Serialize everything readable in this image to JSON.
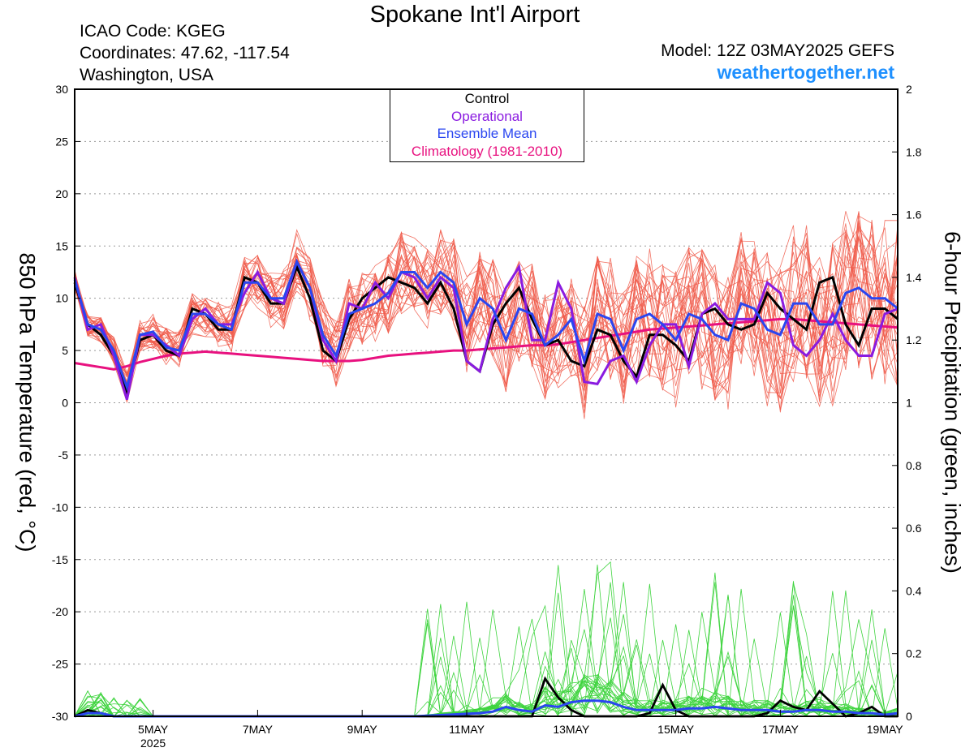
{
  "header": {
    "title": "Spokane Int'l Airport",
    "icao": "ICAO Code: KGEG",
    "coords": "Coordinates: 47.62, -117.54",
    "location": "Washington, USA",
    "model": "Model: 12Z 03MAY2025 GEFS",
    "site": "weathertogether.net"
  },
  "legend": {
    "control": "Control",
    "operational": "Operational",
    "mean": "Ensemble Mean",
    "climo": "Climatology (1981-2010)"
  },
  "colors": {
    "control": "#000000",
    "operational": "#8a1be0",
    "mean": "#2a46f0",
    "climo": "#e8117f",
    "members": "#f05a4a",
    "precip_members": "#3fd43f",
    "site": "#1e90ff"
  },
  "chart_data": {
    "type": "line",
    "ylabel_left": "850 hPa Temperature (red, °C)",
    "ylabel_right": "6-hour Precipitation (green, inches)",
    "ylim_left": [
      -30,
      30
    ],
    "ylim_right": [
      0,
      2
    ],
    "yticks_left": [
      "30",
      "25",
      "20",
      "15",
      "10",
      "5",
      "0",
      "-5",
      "-10",
      "-15",
      "-20",
      "-25",
      "-30"
    ],
    "yticks_right": [
      "2",
      "1.8",
      "1.6",
      "1.4",
      "1.2",
      "1",
      "0.8",
      "0.6",
      "0.4",
      "0.2",
      "0"
    ],
    "grid": true,
    "x_start": "2025-05-03T12Z",
    "x_step_hours": 6,
    "xticks": [
      {
        "label": "5MAY",
        "year": "2025",
        "index": 6
      },
      {
        "label": "7MAY",
        "index": 14
      },
      {
        "label": "9MAY",
        "index": 22
      },
      {
        "label": "11MAY",
        "index": 30
      },
      {
        "label": "13MAY",
        "index": 38
      },
      {
        "label": "15MAY",
        "index": 46
      },
      {
        "label": "17MAY",
        "index": 54
      },
      {
        "label": "19MAY",
        "index": 62
      }
    ],
    "temperature": {
      "control": [
        11.5,
        7.5,
        6.5,
        4.5,
        1.0,
        6.0,
        6.5,
        5.0,
        4.5,
        9.0,
        8.5,
        7.0,
        7.0,
        12.0,
        11.5,
        9.5,
        9.5,
        13.0,
        10.0,
        5.0,
        4.0,
        8.0,
        10.0,
        11.0,
        12.0,
        11.5,
        11.0,
        9.5,
        11.5,
        9.0,
        4.0,
        3.0,
        7.5,
        9.5,
        11.0,
        8.0,
        5.5,
        6.0,
        4.0,
        3.5,
        7.0,
        6.5,
        4.0,
        2.5,
        6.5,
        6.5,
        5.5,
        4.0,
        8.5,
        9.0,
        7.5,
        7.0,
        7.5,
        10.5,
        9.0,
        8.0,
        7.0,
        11.5,
        12.0,
        7.5,
        5.5,
        9.0,
        9.0,
        8.0
      ],
      "operational": [
        12.0,
        7.0,
        7.5,
        4.5,
        0.3,
        6.5,
        6.5,
        5.5,
        4.5,
        8.0,
        9.0,
        7.5,
        7.5,
        10.5,
        12.5,
        10.0,
        9.5,
        13.5,
        11.0,
        6.0,
        4.0,
        9.5,
        9.0,
        11.5,
        10.0,
        12.5,
        12.0,
        10.0,
        12.0,
        11.0,
        4.0,
        3.0,
        8.0,
        11.0,
        13.0,
        6.0,
        6.0,
        11.5,
        9.0,
        2.0,
        1.8,
        4.0,
        4.5,
        2.0,
        5.5,
        7.5,
        7.5,
        3.5,
        8.5,
        9.5,
        8.0,
        8.0,
        8.0,
        11.5,
        10.5,
        5.5,
        4.5,
        6.0,
        8.5,
        6.0,
        4.5,
        4.5,
        8.5,
        9.0
      ],
      "mean": [
        11.8,
        7.5,
        7.0,
        5.0,
        1.5,
        6.5,
        6.8,
        5.3,
        5.0,
        8.5,
        8.5,
        7.5,
        7.0,
        11.5,
        11.5,
        10.0,
        10.0,
        13.5,
        11.0,
        6.5,
        4.5,
        8.5,
        9.0,
        9.5,
        10.5,
        12.5,
        12.5,
        11.0,
        12.5,
        11.5,
        7.5,
        10.0,
        9.0,
        6.0,
        9.0,
        8.5,
        5.5,
        6.5,
        8.0,
        4.0,
        8.5,
        8.0,
        5.0,
        8.0,
        8.5,
        7.5,
        6.0,
        8.5,
        8.0,
        6.5,
        6.0,
        9.5,
        9.0,
        7.0,
        6.5,
        9.5,
        9.5,
        7.5,
        7.5,
        10.5,
        11.0,
        10.0,
        10.0,
        9.0
      ],
      "climatology": [
        3.8,
        3.6,
        3.4,
        3.2,
        3.5,
        3.9,
        4.2,
        4.5,
        4.7,
        4.8,
        4.9,
        4.8,
        4.7,
        4.6,
        4.5,
        4.4,
        4.3,
        4.2,
        4.1,
        4.0,
        4.0,
        4.0,
        4.1,
        4.3,
        4.5,
        4.6,
        4.7,
        4.8,
        4.9,
        5.0,
        5.0,
        5.1,
        5.2,
        5.3,
        5.4,
        5.5,
        5.5,
        5.6,
        5.8,
        6.0,
        6.2,
        6.4,
        6.6,
        6.8,
        7.0,
        7.1,
        7.2,
        7.3,
        7.4,
        7.5,
        7.6,
        7.7,
        7.8,
        7.9,
        8.0,
        8.0,
        7.9,
        7.8,
        7.7,
        7.6,
        7.5,
        7.4,
        7.3,
        7.2
      ]
    },
    "precipitation": {
      "control": [
        0.0,
        0.02,
        0.01,
        0.0,
        0.0,
        0.0,
        0.0,
        0.0,
        0.0,
        0.0,
        0.0,
        0.0,
        0.0,
        0.0,
        0.0,
        0.0,
        0.0,
        0.0,
        0.0,
        0.0,
        0.0,
        0.0,
        0.0,
        0.0,
        0.0,
        0.0,
        0.0,
        0.0,
        0.0,
        0.0,
        0.0,
        0.0,
        0.0,
        0.0,
        0.0,
        0.0,
        0.12,
        0.06,
        0.02,
        0.0,
        0.0,
        0.0,
        0.0,
        0.0,
        0.01,
        0.1,
        0.02,
        0.0,
        0.0,
        0.0,
        0.0,
        0.0,
        0.0,
        0.01,
        0.05,
        0.03,
        0.02,
        0.08,
        0.04,
        0.0,
        0.01,
        0.03,
        0.0,
        0.0
      ],
      "mean": [
        0.0,
        0.01,
        0.01,
        0.0,
        0.0,
        0.0,
        0.0,
        0.0,
        0.0,
        0.0,
        0.0,
        0.0,
        0.0,
        0.0,
        0.0,
        0.0,
        0.0,
        0.0,
        0.0,
        0.0,
        0.0,
        0.0,
        0.0,
        0.0,
        0.0,
        0.0,
        0.0,
        0.002,
        0.004,
        0.006,
        0.008,
        0.01,
        0.015,
        0.03,
        0.02,
        0.015,
        0.035,
        0.03,
        0.045,
        0.05,
        0.05,
        0.045,
        0.03,
        0.02,
        0.02,
        0.02,
        0.02,
        0.025,
        0.025,
        0.03,
        0.025,
        0.02,
        0.02,
        0.02,
        0.015,
        0.015,
        0.02,
        0.02,
        0.015,
        0.015,
        0.01,
        0.01,
        0.005,
        0.01
      ]
    }
  }
}
